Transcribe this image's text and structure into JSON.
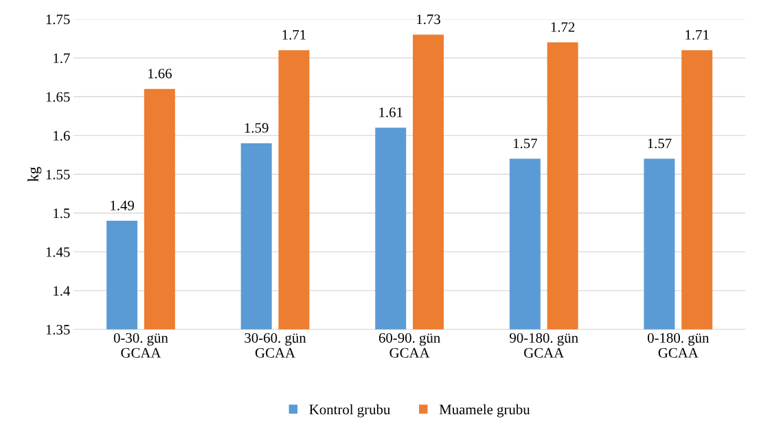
{
  "chart_data": {
    "type": "bar",
    "ylabel": "kg",
    "categories": [
      "0-30. gün\nGCAA",
      "30-60. gün\nGCAA",
      "60-90. gün\nGCAA",
      "90-180. gün\nGCAA",
      "0-180. gün\nGCAA"
    ],
    "series": [
      {
        "name": "Kontrol grubu",
        "color": "#5b9bd5",
        "values": [
          1.49,
          1.59,
          1.61,
          1.57,
          1.57
        ]
      },
      {
        "name": "Muamele grubu",
        "color": "#ed7d31",
        "values": [
          1.66,
          1.71,
          1.73,
          1.72,
          1.71
        ]
      }
    ],
    "ylim": [
      1.35,
      1.75
    ],
    "yticks": [
      1.35,
      1.4,
      1.45,
      1.5,
      1.55,
      1.6,
      1.65,
      1.7,
      1.75
    ],
    "grid": "y",
    "legend": "bottom",
    "data_labels": true
  }
}
